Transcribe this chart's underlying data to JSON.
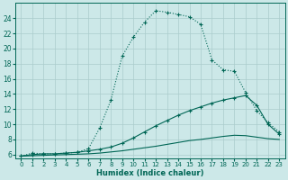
{
  "xlabel": "Humidex (Indice chaleur)",
  "bg_color": "#cce8e8",
  "grid_color": "#aacccc",
  "line_color": "#006655",
  "xlim": [
    -0.5,
    23.5
  ],
  "ylim": [
    5.5,
    26
  ],
  "xticks": [
    0,
    1,
    2,
    3,
    4,
    5,
    6,
    7,
    8,
    9,
    10,
    11,
    12,
    13,
    14,
    15,
    16,
    17,
    18,
    19,
    20,
    21,
    22,
    23
  ],
  "yticks": [
    6,
    8,
    10,
    12,
    14,
    16,
    18,
    20,
    22,
    24
  ],
  "series1_x": [
    0,
    1,
    2,
    3,
    4,
    5,
    6,
    7,
    8,
    9,
    10,
    11,
    12,
    13,
    14,
    15,
    16,
    17,
    18,
    19,
    20,
    21,
    22,
    23
  ],
  "series1_y": [
    5.8,
    6.2,
    6.1,
    6.1,
    6.2,
    6.3,
    6.8,
    9.5,
    13.2,
    19.0,
    21.5,
    23.5,
    25.0,
    24.8,
    24.5,
    24.2,
    23.2,
    18.5,
    17.2,
    17.0,
    14.2,
    11.8,
    10.2,
    9.0
  ],
  "series2_x": [
    0,
    1,
    2,
    3,
    4,
    5,
    6,
    7,
    8,
    9,
    10,
    11,
    12,
    13,
    14,
    15,
    16,
    17,
    18,
    19,
    20,
    21,
    22,
    23
  ],
  "series2_y": [
    5.8,
    6.0,
    6.1,
    6.1,
    6.2,
    6.3,
    6.5,
    6.7,
    7.0,
    7.5,
    8.2,
    9.0,
    9.8,
    10.5,
    11.2,
    11.8,
    12.3,
    12.8,
    13.2,
    13.5,
    13.8,
    12.5,
    10.0,
    8.7
  ],
  "series3_x": [
    0,
    1,
    2,
    3,
    4,
    5,
    6,
    7,
    8,
    9,
    10,
    11,
    12,
    13,
    14,
    15,
    16,
    17,
    18,
    19,
    20,
    21,
    22,
    23
  ],
  "series3_y": [
    5.8,
    5.85,
    5.9,
    5.95,
    6.0,
    6.05,
    6.1,
    6.2,
    6.35,
    6.5,
    6.7,
    6.9,
    7.1,
    7.35,
    7.6,
    7.85,
    8.0,
    8.2,
    8.4,
    8.55,
    8.5,
    8.3,
    8.1,
    8.0
  ]
}
